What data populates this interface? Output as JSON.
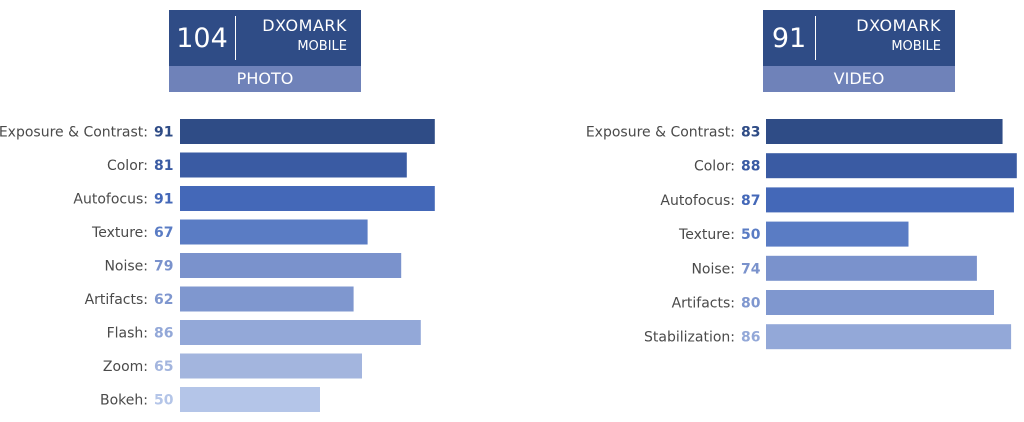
{
  "panels": [
    {
      "badge": {
        "score": "104",
        "brand": "DXOMARK",
        "brand_sub": "MOBILE",
        "label": "PHOTO"
      }
    },
    {
      "badge": {
        "score": "91",
        "brand": "DXOMARK",
        "brand_sub": "MOBILE",
        "label": "VIDEO"
      }
    }
  ],
  "chart_data": [
    {
      "type": "bar",
      "orientation": "horizontal",
      "categories": [
        "Exposure & Contrast:",
        "Color:",
        "Autofocus:",
        "Texture:",
        "Noise:",
        "Artifacts:",
        "Flash:",
        "Zoom:",
        "Bokeh:"
      ],
      "values": [
        91,
        81,
        91,
        67,
        79,
        62,
        86,
        65,
        50
      ],
      "bar_colors": [
        "#2f4c86",
        "#3a5ba3",
        "#4468b8",
        "#5a7cc4",
        "#7a92cc",
        "#7f97cf",
        "#93a8d8",
        "#a3b5de",
        "#b4c5e8"
      ],
      "value_colors": [
        "#2f4c86",
        "#3a5ba3",
        "#4468b8",
        "#5a7cc4",
        "#7a92cc",
        "#7f97cf",
        "#93a8d8",
        "#a3b5de",
        "#b4c5e8"
      ]
    },
    {
      "type": "bar",
      "orientation": "horizontal",
      "categories": [
        "Exposure & Contrast:",
        "Color:",
        "Autofocus:",
        "Texture:",
        "Noise:",
        "Artifacts:",
        "Stabilization:"
      ],
      "values": [
        83,
        88,
        87,
        50,
        74,
        80,
        86
      ],
      "bar_colors": [
        "#2f4c86",
        "#3a5ba3",
        "#4468b8",
        "#5a7cc4",
        "#7a92cc",
        "#7f97cf",
        "#93a8d8"
      ],
      "value_colors": [
        "#2f4c86",
        "#3a5ba3",
        "#4468b8",
        "#5a7cc4",
        "#7a92cc",
        "#7f97cf",
        "#93a8d8"
      ]
    }
  ]
}
